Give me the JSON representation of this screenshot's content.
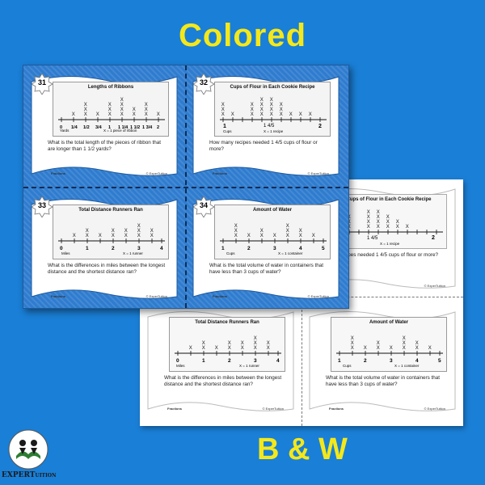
{
  "colors": {
    "background": "#1a7fd6",
    "title": "#f5e81a",
    "card_blue": "#2f7ccf"
  },
  "header": {
    "title": "Colored"
  },
  "footer": {
    "bw_label": "B & W"
  },
  "logo": {
    "icon": "book-readers-icon",
    "text_main": "EXPERT",
    "text_small": "UITION"
  },
  "card_footer": {
    "left": "Fractions",
    "right": "© ExperTuition"
  },
  "cards": {
    "c31": {
      "number": "31",
      "plot_title": "Lengths of Ribbons",
      "axis_labels": [
        "0",
        "1/4",
        "1/2",
        "3/4",
        "1",
        "1 1/4",
        "1 1/2",
        "1 3/4",
        "2"
      ],
      "unit_left": "Yards",
      "key": "X = 1 piece of ribbon",
      "question": "What is the total length of the pieces of ribbon that are longer than 1 1/2 yards?"
    },
    "c32": {
      "number": "32",
      "plot_title": "Cups of Flour in Each Cookie Recipe",
      "axis_labels": [
        "1",
        "1 4/5",
        "2"
      ],
      "unit_left": "Cups",
      "key": "X = 1 recipe",
      "question": "How many recipes needed 1 4/5 cups of flour or more?"
    },
    "c33": {
      "number": "33",
      "plot_title": "Total Distance Runners Ran",
      "axis_labels": [
        "0",
        "1",
        "2",
        "3",
        "4"
      ],
      "unit_left": "Miles",
      "key": "X = 1 runner",
      "question": "What is the differences in miles between the longest distance and the shortest distance ran?"
    },
    "c34": {
      "number": "34",
      "plot_title": "Amount of Water",
      "axis_labels": [
        "1",
        "2",
        "3",
        "4",
        "5"
      ],
      "unit_left": "Cups",
      "key": "X = 1 container",
      "question": "What is the total volume of water in containers that have less than 3 cups of water?"
    }
  },
  "bw_cards": {
    "b32": {
      "plot_title": "Cups of Flour in Each Cookie Recipe",
      "axis_labels": [
        "1 4/5",
        "2"
      ],
      "key": "X = 1 recipe",
      "question": "many recipes needed 1 4/5 cups of flour or more?"
    },
    "b33": {
      "number": "33",
      "plot_title": "Total Distance Runners Ran",
      "axis_labels": [
        "0",
        "1",
        "2",
        "3",
        "4"
      ],
      "unit_left": "Miles",
      "key": "X = 1 runner",
      "question": "What is the differences in miles between the longest distance and the shortest distance ran?"
    },
    "b34": {
      "number": "34",
      "plot_title": "Amount of Water",
      "axis_labels": [
        "1",
        "2",
        "3",
        "4",
        "5"
      ],
      "unit_left": "Cups",
      "key": "X = 1 container",
      "question": "What is the total volume of water in containers that have less than 3 cups of water?"
    }
  },
  "x_mark": "X"
}
